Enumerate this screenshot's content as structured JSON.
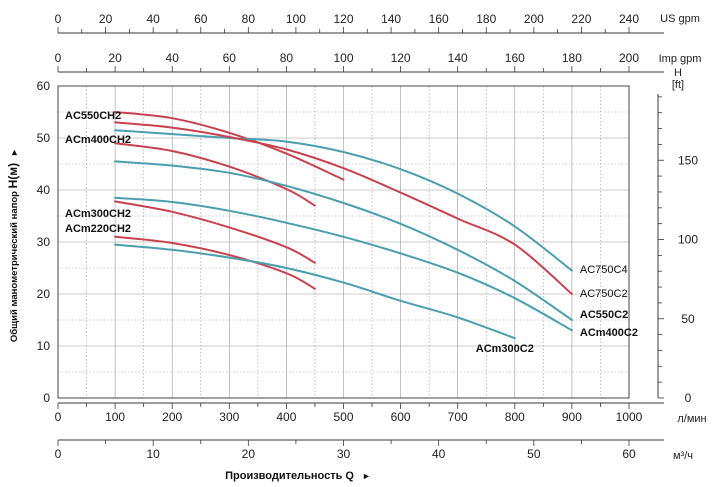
{
  "chart_data": {
    "type": "line",
    "grid": true,
    "x_primary": {
      "unit": "л/мин",
      "range": [
        0,
        1000
      ],
      "ticks": [
        "0",
        "100",
        "200",
        "300",
        "400",
        "500",
        "600",
        "700",
        "800",
        "900",
        "1000"
      ]
    },
    "x_m3h": {
      "unit": "м³/ч",
      "range": [
        0,
        60
      ],
      "ticks": [
        "0",
        "10",
        "20",
        "30",
        "40",
        "50",
        "60"
      ]
    },
    "x_us_gpm": {
      "unit": "US gpm",
      "range": [
        0,
        240
      ],
      "ticks": [
        "0",
        "20",
        "40",
        "60",
        "80",
        "100",
        "120",
        "140",
        "160",
        "180",
        "200",
        "220",
        "240"
      ]
    },
    "x_imp_gpm": {
      "unit": "Imp gpm",
      "range": [
        0,
        200
      ],
      "ticks": [
        "0",
        "20",
        "40",
        "60",
        "80",
        "100",
        "120",
        "140",
        "160",
        "180",
        "200"
      ]
    },
    "y_left": {
      "range": [
        0,
        60
      ],
      "ticks": [
        "0",
        "10",
        "20",
        "30",
        "40",
        "50",
        "60"
      ]
    },
    "y_right": {
      "unit_line1": "H",
      "unit_line2": "[ft]",
      "range": [
        0,
        196.85
      ],
      "ticks": [
        "0",
        "50",
        "100",
        "150"
      ]
    },
    "ylabel_prefix": "Общий манометрический напор ",
    "ylabel_main": "H(м)",
    "ylabel_arrow": "►",
    "xlabel_main": "Производительность Q",
    "xlabel_arrow": "►",
    "series": [
      {
        "name": "AC550CH2",
        "color": "#c8424e",
        "label_pos": "left",
        "bold": true,
        "x": [
          100,
          200,
          300,
          400,
          500
        ],
        "y": [
          55,
          53.8,
          51,
          47,
          42
        ]
      },
      {
        "name": "ACm400CH2",
        "color": "#c8424e",
        "label_pos": "left",
        "bold": true,
        "x": [
          100,
          200,
          300,
          400,
          450
        ],
        "y": [
          49,
          47.5,
          44.5,
          40.2,
          37
        ]
      },
      {
        "name": "ACm300CH2",
        "color": "#c8424e",
        "label_pos": "left",
        "bold": true,
        "x": [
          100,
          200,
          300,
          400,
          450
        ],
        "y": [
          37.8,
          35.8,
          32.8,
          29,
          26
        ]
      },
      {
        "name": "ACm220CH2",
        "color": "#c8424e",
        "label_pos": "left",
        "bold": true,
        "x": [
          100,
          200,
          300,
          400,
          450
        ],
        "y": [
          31,
          29.8,
          27.5,
          24,
          21
        ]
      },
      {
        "name": "AC750C4",
        "color": "#4a9eae",
        "label_pos": "right",
        "bold": false,
        "x": [
          100,
          300,
          400,
          500,
          600,
          700,
          800,
          900
        ],
        "y": [
          51.5,
          50,
          49.3,
          47.3,
          44,
          39.3,
          33,
          24.5
        ]
      },
      {
        "name": "AC750C2",
        "color": "#c8424e",
        "label_pos": "right",
        "bold": false,
        "x": [
          100,
          200,
          300,
          400,
          500,
          600,
          700,
          800,
          900
        ],
        "y": [
          53,
          52,
          50.2,
          47.8,
          44.2,
          39.5,
          34.5,
          29.5,
          20
        ]
      },
      {
        "name": "AC550C2",
        "color": "#4a9eae",
        "label_pos": "right",
        "bold": true,
        "x": [
          100,
          200,
          300,
          400,
          500,
          600,
          700,
          800,
          900
        ],
        "y": [
          45.5,
          44.7,
          43.3,
          40.8,
          37.5,
          33.5,
          28.5,
          22.5,
          15
        ]
      },
      {
        "name": "ACm400C2",
        "color": "#4a9eae",
        "label_pos": "right",
        "bold": true,
        "x": [
          100,
          200,
          300,
          400,
          500,
          600,
          700,
          800,
          900
        ],
        "y": [
          38.5,
          37.7,
          36,
          33.7,
          31,
          27.8,
          24.1,
          19.2,
          13
        ]
      },
      {
        "name": "ACm300C2",
        "color": "#4a9eae",
        "label_pos": "below",
        "bold": true,
        "x": [
          100,
          200,
          300,
          400,
          500,
          600,
          700,
          800
        ],
        "y": [
          29.5,
          28.5,
          27,
          25,
          22.2,
          18.7,
          15.5,
          11.5
        ]
      }
    ],
    "colors": {
      "grid": "#9a9a9a",
      "axis": "#3a3a3a",
      "frame": "#444444"
    }
  }
}
